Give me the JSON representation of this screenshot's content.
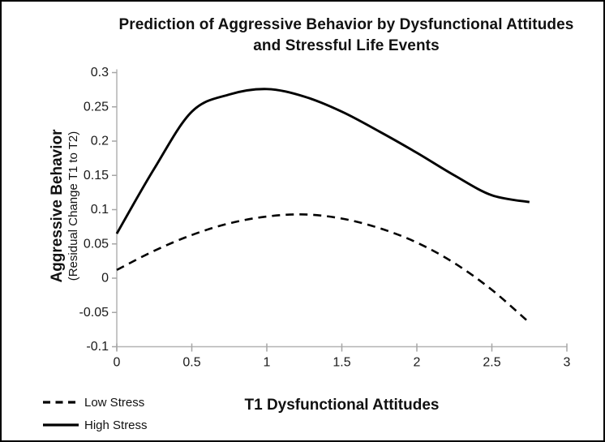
{
  "chart_data": {
    "type": "line",
    "title": "Prediction of Aggressive Behavior by Dysfunctional Attitudes and Stressful Life Events",
    "xlabel": "T1 Dysfunctional Attitudes",
    "ylabel": "Aggressive Behavior",
    "ylabel_sub": "(Residual Change T1 to T2)",
    "xlim": [
      0,
      3
    ],
    "ylim": [
      -0.1,
      0.3
    ],
    "grid": false,
    "legend_position": "bottom-left",
    "axis_color": "#b3b3b3",
    "tick_color": "#a6a6a6",
    "text_color": "#1a1a1a",
    "line_color": "#000000",
    "xticks": {
      "values": [
        0,
        0.5,
        1,
        1.5,
        2,
        2.5,
        3
      ],
      "labels": [
        "0",
        "0.5",
        "1",
        "1.5",
        "2",
        "2.5",
        "3"
      ]
    },
    "yticks": {
      "values": [
        0.3,
        0.25,
        0.2,
        0.15,
        0.1,
        0.05,
        0,
        -0.05,
        -0.1
      ],
      "labels": [
        "0.3",
        "0.25",
        "0.2",
        "0.15",
        "0.1",
        "0.05",
        "0",
        "-0.05",
        "-0.1"
      ]
    },
    "x": [
      0,
      0.25,
      0.5,
      0.75,
      1.0,
      1.25,
      1.5,
      1.75,
      2.0,
      2.25,
      2.5,
      2.75
    ],
    "series": [
      {
        "name": "Low Stress",
        "style": "dashed",
        "values": [
          0.012,
          0.04,
          0.063,
          0.08,
          0.09,
          0.093,
          0.087,
          0.073,
          0.052,
          0.022,
          -0.017,
          -0.065
        ]
      },
      {
        "name": "High Stress",
        "style": "solid",
        "values": [
          0.065,
          0.16,
          0.243,
          0.268,
          0.276,
          0.265,
          0.243,
          0.214,
          0.183,
          0.15,
          0.121,
          0.111
        ]
      }
    ]
  }
}
